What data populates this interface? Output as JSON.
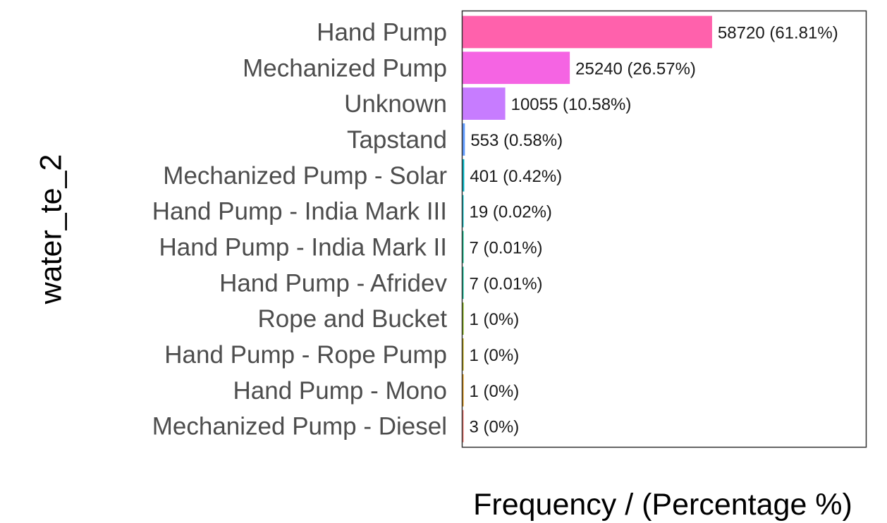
{
  "chart_data": {
    "type": "bar",
    "orientation": "horizontal",
    "title": "",
    "xlabel": "Frequency / (Percentage %)",
    "ylabel": "water_te_2",
    "grid": false,
    "legend": "none",
    "xlim": [
      0,
      94900
    ],
    "categories": [
      "Hand Pump",
      "Mechanized Pump",
      "Unknown",
      "Tapstand",
      "Mechanized Pump - Solar",
      "Hand Pump - India Mark III",
      "Hand Pump - India Mark II",
      "Hand Pump - Afridev",
      "Rope and Bucket",
      "Hand Pump - Rope Pump",
      "Hand Pump - Mono",
      "Mechanized Pump - Diesel"
    ],
    "values": [
      58720,
      25240,
      10055,
      553,
      401,
      19,
      7,
      7,
      1,
      1,
      1,
      3
    ],
    "labels": [
      "58720 (61.81%)",
      "25240 (26.57%)",
      "10055 (10.58%)",
      "553 (0.58%)",
      "401 (0.42%)",
      "19 (0.02%)",
      "7 (0.01%)",
      "7 (0.01%)",
      "1 (0%)",
      "1 (0%)",
      "1 (0%)",
      "3 (0%)"
    ],
    "colors": [
      "#ff61ac",
      "#f564e3",
      "#c77cff",
      "#619cff",
      "#00b4c4",
      "#00bfc4",
      "#00c08b",
      "#00c094",
      "#7cae00",
      "#b79f00",
      "#de8c00",
      "#f8766d"
    ]
  }
}
